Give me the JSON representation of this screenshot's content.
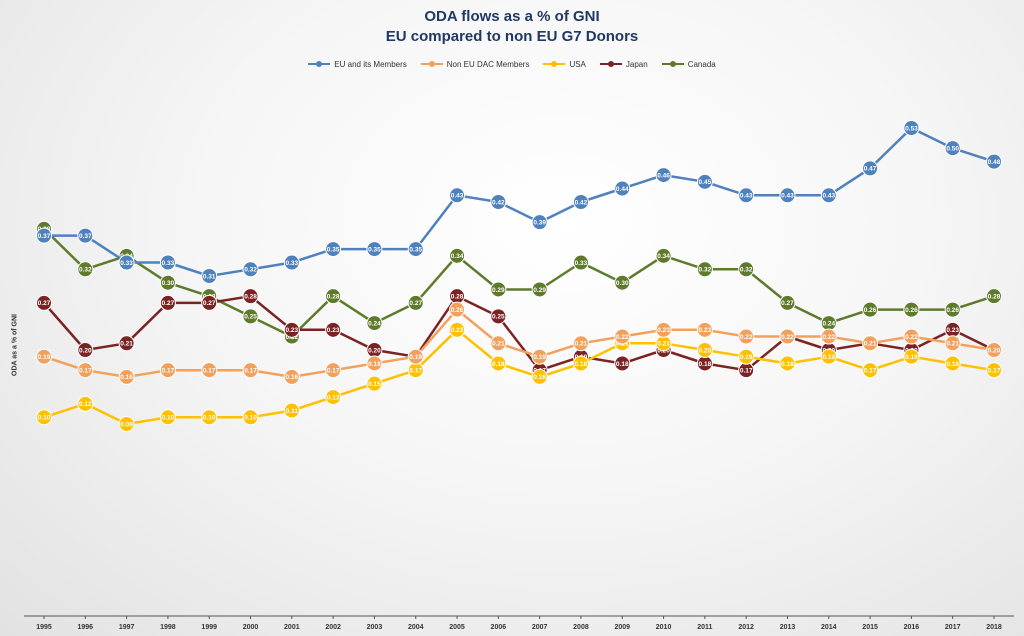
{
  "colors": {
    "EU and its Members": "#4f81bd",
    "Non EU DAC Members": "#f2a15d",
    "USA": "#ffc000",
    "Japan": "#7b2323",
    "Canada": "#5e7a2b"
  },
  "chart_data": {
    "type": "line",
    "title": "ODA flows as a % of GNI",
    "subtitle": "EU compared to non EU G7 Donors",
    "xlabel": "",
    "ylabel": "ODA as a % of GNI",
    "ylim": [
      0.05,
      0.58
    ],
    "grid": false,
    "legend_position": "top",
    "x": [
      "1995",
      "1996",
      "1997",
      "1998",
      "1999",
      "2000",
      "2001",
      "2002",
      "2003",
      "2004",
      "2005",
      "2006",
      "2007",
      "2008",
      "2009",
      "2010",
      "2011",
      "2012",
      "2013",
      "2014",
      "2015",
      "2016",
      "2017",
      "2018"
    ],
    "series": [
      {
        "name": "Canada",
        "values": [
          0.38,
          0.32,
          0.34,
          0.3,
          0.28,
          0.25,
          0.22,
          0.28,
          0.24,
          0.27,
          0.34,
          0.29,
          0.29,
          0.33,
          0.3,
          0.34,
          0.32,
          0.32,
          0.27,
          0.24,
          0.26,
          0.26,
          0.26,
          0.28
        ]
      },
      {
        "name": "Japan",
        "values": [
          0.27,
          0.2,
          0.21,
          0.27,
          0.27,
          0.28,
          0.23,
          0.23,
          0.2,
          0.19,
          0.28,
          0.25,
          0.17,
          0.19,
          0.18,
          0.2,
          0.18,
          0.17,
          0.22,
          0.2,
          0.21,
          0.2,
          0.23,
          0.2
        ]
      },
      {
        "name": "USA",
        "values": [
          0.1,
          0.12,
          0.09,
          0.1,
          0.1,
          0.1,
          0.11,
          0.13,
          0.15,
          0.17,
          0.23,
          0.18,
          0.16,
          0.18,
          0.21,
          0.21,
          0.2,
          0.19,
          0.18,
          0.19,
          0.17,
          0.19,
          0.18,
          0.17
        ]
      },
      {
        "name": "Non EU DAC Members",
        "values": [
          0.19,
          0.17,
          0.16,
          0.17,
          0.17,
          0.17,
          0.16,
          0.17,
          0.18,
          0.19,
          0.26,
          0.21,
          0.19,
          0.21,
          0.22,
          0.23,
          0.23,
          0.22,
          0.22,
          0.22,
          0.21,
          0.22,
          0.21,
          0.2
        ]
      },
      {
        "name": "EU and its Members",
        "values": [
          0.37,
          0.37,
          0.33,
          0.33,
          0.31,
          0.32,
          0.33,
          0.35,
          0.35,
          0.35,
          0.43,
          0.42,
          0.39,
          0.42,
          0.44,
          0.46,
          0.45,
          0.43,
          0.43,
          0.43,
          0.47,
          0.53,
          0.5,
          0.48
        ]
      }
    ],
    "legend_order": [
      "EU and its Members",
      "Non EU DAC Members",
      "USA",
      "Japan",
      "Canada"
    ]
  }
}
